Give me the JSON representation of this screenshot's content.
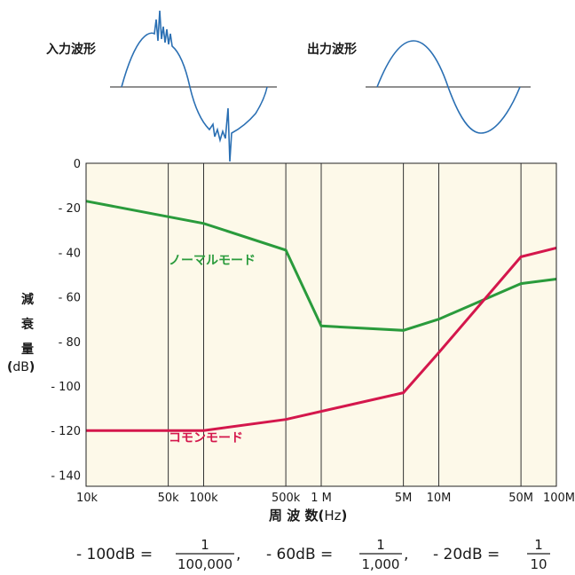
{
  "waveforms": {
    "input_label": "入力波形",
    "output_label": "出力波形"
  },
  "chart_data": {
    "type": "line",
    "ylabel_chars": [
      "減",
      "衰",
      "量"
    ],
    "ylabel_unit": "dB",
    "xlabel": "周 波 数",
    "xlabel_unit": "Hz",
    "x_scale": "log",
    "xlim": [
      10000,
      100000000
    ],
    "ylim": [
      0,
      -145
    ],
    "x_ticks": [
      {
        "value": 10000,
        "label": "10k"
      },
      {
        "value": 50000,
        "label": "50k"
      },
      {
        "value": 100000,
        "label": "100k"
      },
      {
        "value": 500000,
        "label": "500k"
      },
      {
        "value": 1000000,
        "label": "1 M"
      },
      {
        "value": 5000000,
        "label": "5M"
      },
      {
        "value": 10000000,
        "label": "10M"
      },
      {
        "value": 50000000,
        "label": "50M"
      },
      {
        "value": 100000000,
        "label": "100M"
      }
    ],
    "y_ticks": [
      {
        "value": 0,
        "label": "0"
      },
      {
        "value": -20,
        "label": "- 20"
      },
      {
        "value": -40,
        "label": "- 40"
      },
      {
        "value": -60,
        "label": "- 60"
      },
      {
        "value": -80,
        "label": "- 80"
      },
      {
        "value": -100,
        "label": "- 100"
      },
      {
        "value": -120,
        "label": "- 120"
      },
      {
        "value": -140,
        "label": "- 140"
      }
    ],
    "grid": "vertical",
    "background": "#fdf9e9",
    "series": [
      {
        "name": "ノーマルモード",
        "color": "#2a9b3c",
        "points": [
          [
            10000,
            -17
          ],
          [
            100000,
            -27
          ],
          [
            500000,
            -39
          ],
          [
            1000000,
            -73
          ],
          [
            5000000,
            -75
          ],
          [
            10000000,
            -70
          ],
          [
            50000000,
            -54
          ],
          [
            100000000,
            -52
          ]
        ]
      },
      {
        "name": "コモンモード",
        "color": "#d4174c",
        "points": [
          [
            10000,
            -120
          ],
          [
            100000,
            -120
          ],
          [
            500000,
            -115
          ],
          [
            5000000,
            -103
          ],
          [
            10000000,
            -85
          ],
          [
            50000000,
            -42
          ],
          [
            100000000,
            -38
          ]
        ]
      }
    ]
  },
  "formula": {
    "t1_prefix": "- 100dB = ",
    "t1_num": "1",
    "t1_den": "100,000",
    "sep1": " , ",
    "t2_prefix": "- 60dB = ",
    "t2_num": "1",
    "t2_den": "1,000",
    "sep2": " , ",
    "t3_prefix": "- 20dB = ",
    "t3_num": "1",
    "t3_den": "10"
  }
}
